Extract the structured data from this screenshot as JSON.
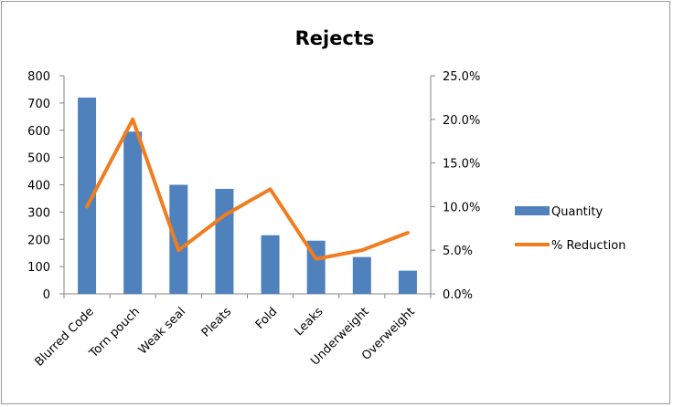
{
  "chart_data": {
    "type": "bar",
    "title": "Rejects",
    "categories": [
      "Blurred Code",
      "Torn pouch",
      "Weak seal",
      "Pleats",
      "Fold",
      "Leaks",
      "Underweight",
      "Overweight"
    ],
    "series": [
      {
        "name": "Quantity",
        "type": "bar",
        "axis": "left",
        "color": "#4f81bd",
        "values": [
          720,
          595,
          400,
          385,
          215,
          195,
          135,
          85
        ]
      },
      {
        "name": "% Reduction",
        "type": "line",
        "axis": "right",
        "color": "#f07d1f",
        "values": [
          10,
          20,
          5,
          9,
          12,
          4,
          5,
          7
        ]
      }
    ],
    "y_left": {
      "ylim": [
        0,
        800
      ],
      "ticks": [
        "0",
        "100",
        "200",
        "300",
        "400",
        "500",
        "600",
        "700",
        "800"
      ]
    },
    "y_right": {
      "ylim": [
        0,
        25
      ],
      "ticks": [
        "0.0%",
        "5.0%",
        "10.0%",
        "15.0%",
        "20.0%",
        "25.0%"
      ]
    },
    "legend_position": "right",
    "grid": false
  }
}
